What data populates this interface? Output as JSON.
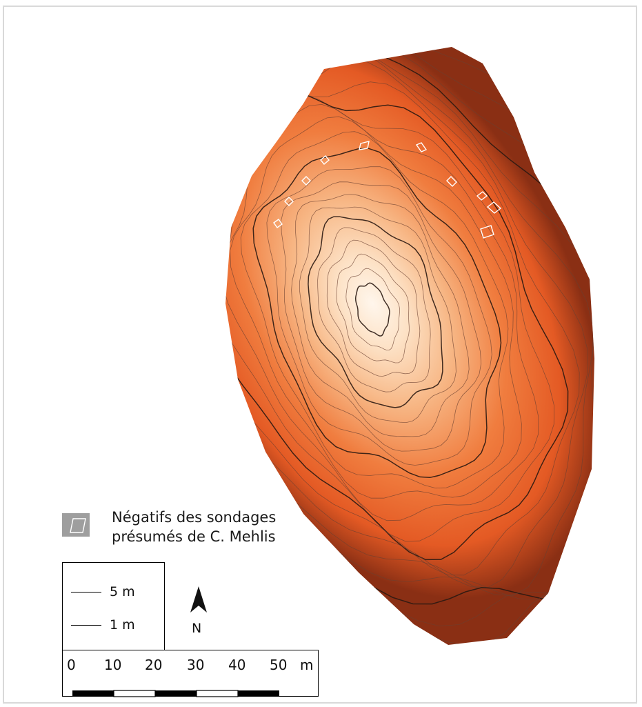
{
  "map": {
    "legend": {
      "sondages_line1": "Négatifs des sondages",
      "sondages_line2": "présumés de C. Mehlis",
      "contour_major": "5 m",
      "contour_minor": "1 m"
    },
    "north_label": "N",
    "scale": {
      "ticks": [
        "0",
        "10",
        "20",
        "30",
        "40",
        "50"
      ],
      "unit": "m"
    },
    "colors": {
      "summit": "#fff6ec",
      "mid_slope": "#f39a5c",
      "outer_slope": "#e8602a",
      "edge": "#8a2f14",
      "contour_major": "#2b1a12",
      "contour_minor": "#6b4030",
      "sondage_outline": "#ffffff",
      "legend_swatch": "#9e9e9e"
    }
  }
}
